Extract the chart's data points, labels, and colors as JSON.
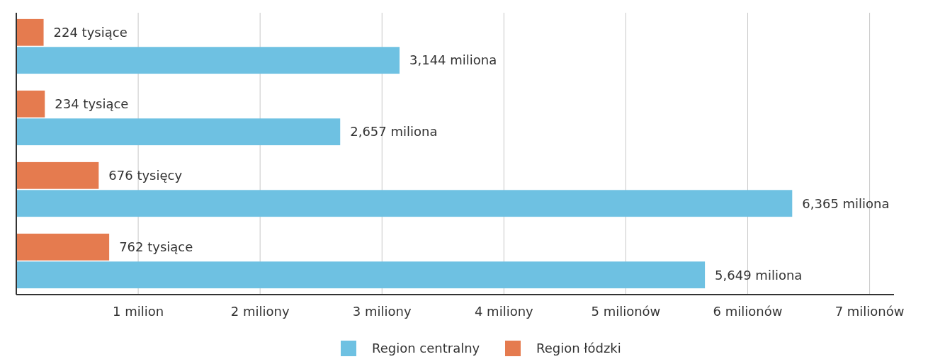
{
  "chart_data": {
    "type": "bar",
    "orientation": "horizontal",
    "categories": [
      null,
      null,
      null,
      null
    ],
    "series": [
      {
        "name": "Region centralny",
        "color": "#6ec1e2",
        "values": [
          3.144,
          2.657,
          6.365,
          5.649
        ]
      },
      {
        "name": "Region łódzki",
        "color": "#e57b4f",
        "values": [
          0.224,
          0.234,
          0.676,
          0.762
        ]
      }
    ],
    "annotations": [
      {
        "text": "3,144 miliona",
        "x": 3.144
      },
      {
        "text": "2,657 miliona",
        "x": 2.657
      },
      {
        "text": "6,365 miliona",
        "x": 6.365
      },
      {
        "text": "5,649 miliona",
        "x": 5.649
      },
      {
        "text": "224 tysiące",
        "x": 0.224
      },
      {
        "text": "234 tysiące",
        "x": 0.234
      },
      {
        "text": "676 tysięcy",
        "x": 0.676
      },
      {
        "text": "762 tysiące",
        "x": 0.762
      }
    ],
    "xlim": [
      0,
      7.2
    ],
    "xticks": [
      {
        "value": 1,
        "label": "1 milion"
      },
      {
        "value": 2,
        "label": "2 miliony"
      },
      {
        "value": 3,
        "label": "3 miliony"
      },
      {
        "value": 4,
        "label": "4 miliony"
      },
      {
        "value": 5,
        "label": "5 milionów"
      },
      {
        "value": 6,
        "label": "6 milionów"
      },
      {
        "value": 7,
        "label": "7 milionów"
      }
    ],
    "grid": "x",
    "legend": "bottom"
  }
}
